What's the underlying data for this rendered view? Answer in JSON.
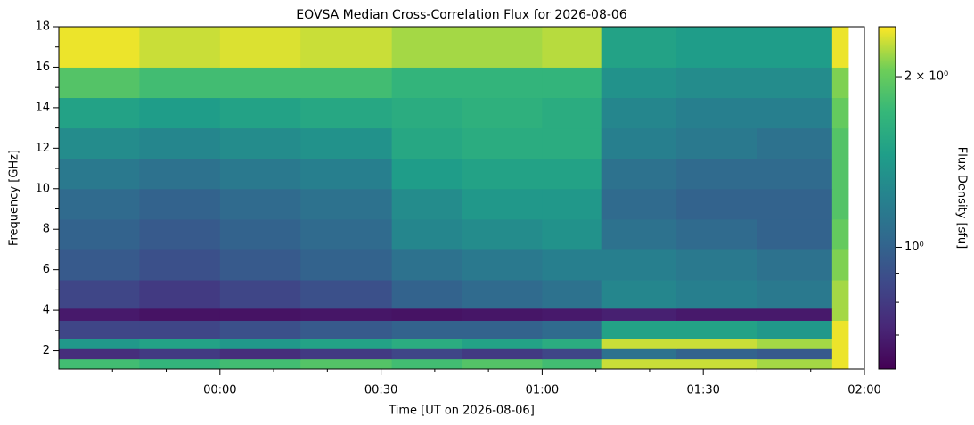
{
  "chart_data": {
    "type": "heatmap",
    "title": "EOVSA Median Cross-Correlation Flux for 2026-08-06",
    "xlabel": "Time [UT on 2026-08-06]",
    "ylabel": "Frequency [GHz]",
    "colorbar_label": "Flux Density [sfu]",
    "colorscale": "viridis",
    "color_log": true,
    "clim": [
      0.61,
      2.45
    ],
    "cticks": [
      {
        "value": 1,
        "label": "10⁰"
      },
      {
        "value": 2,
        "label": "2 × 10⁰"
      }
    ],
    "cminorticks": [
      0.7,
      0.8,
      0.9
    ],
    "xlim": [
      -30,
      120
    ],
    "xticks": [
      {
        "value": 0,
        "label": "00:00"
      },
      {
        "value": 30,
        "label": "00:30"
      },
      {
        "value": 60,
        "label": "01:00"
      },
      {
        "value": 90,
        "label": "01:30"
      },
      {
        "value": 120,
        "label": "02:00"
      }
    ],
    "xminorticks": [
      -20,
      -10,
      10,
      20,
      40,
      50,
      70,
      80,
      100,
      110
    ],
    "ylim": [
      1.1,
      18
    ],
    "yticks": [
      2,
      4,
      6,
      8,
      10,
      12,
      14,
      16,
      18
    ],
    "yminorticks": [
      3,
      5,
      7,
      9,
      11,
      13,
      15,
      17
    ],
    "x": [
      -30,
      -15,
      0,
      15,
      32,
      45,
      60,
      71,
      85,
      100,
      114,
      117
    ],
    "y": [
      1.1,
      1.6,
      2.1,
      2.6,
      3.5,
      4.1,
      5.5,
      7,
      8.5,
      10,
      11.5,
      13,
      14.5,
      16,
      18
    ],
    "z": [
      [
        1.8,
        1.7,
        1.8,
        1.9,
        1.8,
        1.9,
        1.8,
        2.3,
        2.3,
        2.2,
        2.4
      ],
      [
        0.75,
        0.8,
        0.75,
        0.8,
        0.85,
        0.8,
        0.85,
        1.1,
        1.0,
        0.95,
        2.4
      ],
      [
        1.4,
        1.5,
        1.4,
        1.5,
        1.6,
        1.5,
        1.6,
        2.3,
        2.3,
        2.2,
        2.4
      ],
      [
        0.85,
        0.85,
        0.9,
        0.95,
        1.0,
        1.0,
        1.05,
        1.5,
        1.5,
        1.4,
        2.4
      ],
      [
        0.68,
        0.66,
        0.66,
        0.67,
        0.66,
        0.67,
        0.68,
        0.7,
        0.68,
        0.68,
        2.2
      ],
      [
        0.85,
        0.8,
        0.85,
        0.9,
        1.0,
        1.05,
        1.1,
        1.25,
        1.2,
        1.15,
        2.2
      ],
      [
        0.95,
        0.9,
        0.95,
        1.0,
        1.1,
        1.15,
        1.2,
        1.2,
        1.15,
        1.1,
        2.1
      ],
      [
        1.0,
        0.95,
        1.0,
        1.05,
        1.25,
        1.3,
        1.35,
        1.1,
        1.05,
        1.0,
        2.0
      ],
      [
        1.05,
        1.0,
        1.05,
        1.1,
        1.3,
        1.4,
        1.4,
        1.05,
        1.0,
        1.0,
        1.9
      ],
      [
        1.15,
        1.1,
        1.15,
        1.2,
        1.45,
        1.5,
        1.5,
        1.1,
        1.05,
        1.05,
        1.9
      ],
      [
        1.3,
        1.25,
        1.3,
        1.35,
        1.55,
        1.6,
        1.6,
        1.2,
        1.15,
        1.1,
        1.9
      ],
      [
        1.5,
        1.45,
        1.5,
        1.55,
        1.6,
        1.65,
        1.6,
        1.25,
        1.2,
        1.2,
        2.0
      ],
      [
        1.9,
        1.8,
        1.8,
        1.8,
        1.7,
        1.7,
        1.7,
        1.35,
        1.3,
        1.3,
        2.1
      ],
      [
        2.4,
        2.3,
        2.35,
        2.3,
        2.2,
        2.2,
        2.25,
        1.5,
        1.45,
        1.45,
        2.4
      ]
    ]
  }
}
